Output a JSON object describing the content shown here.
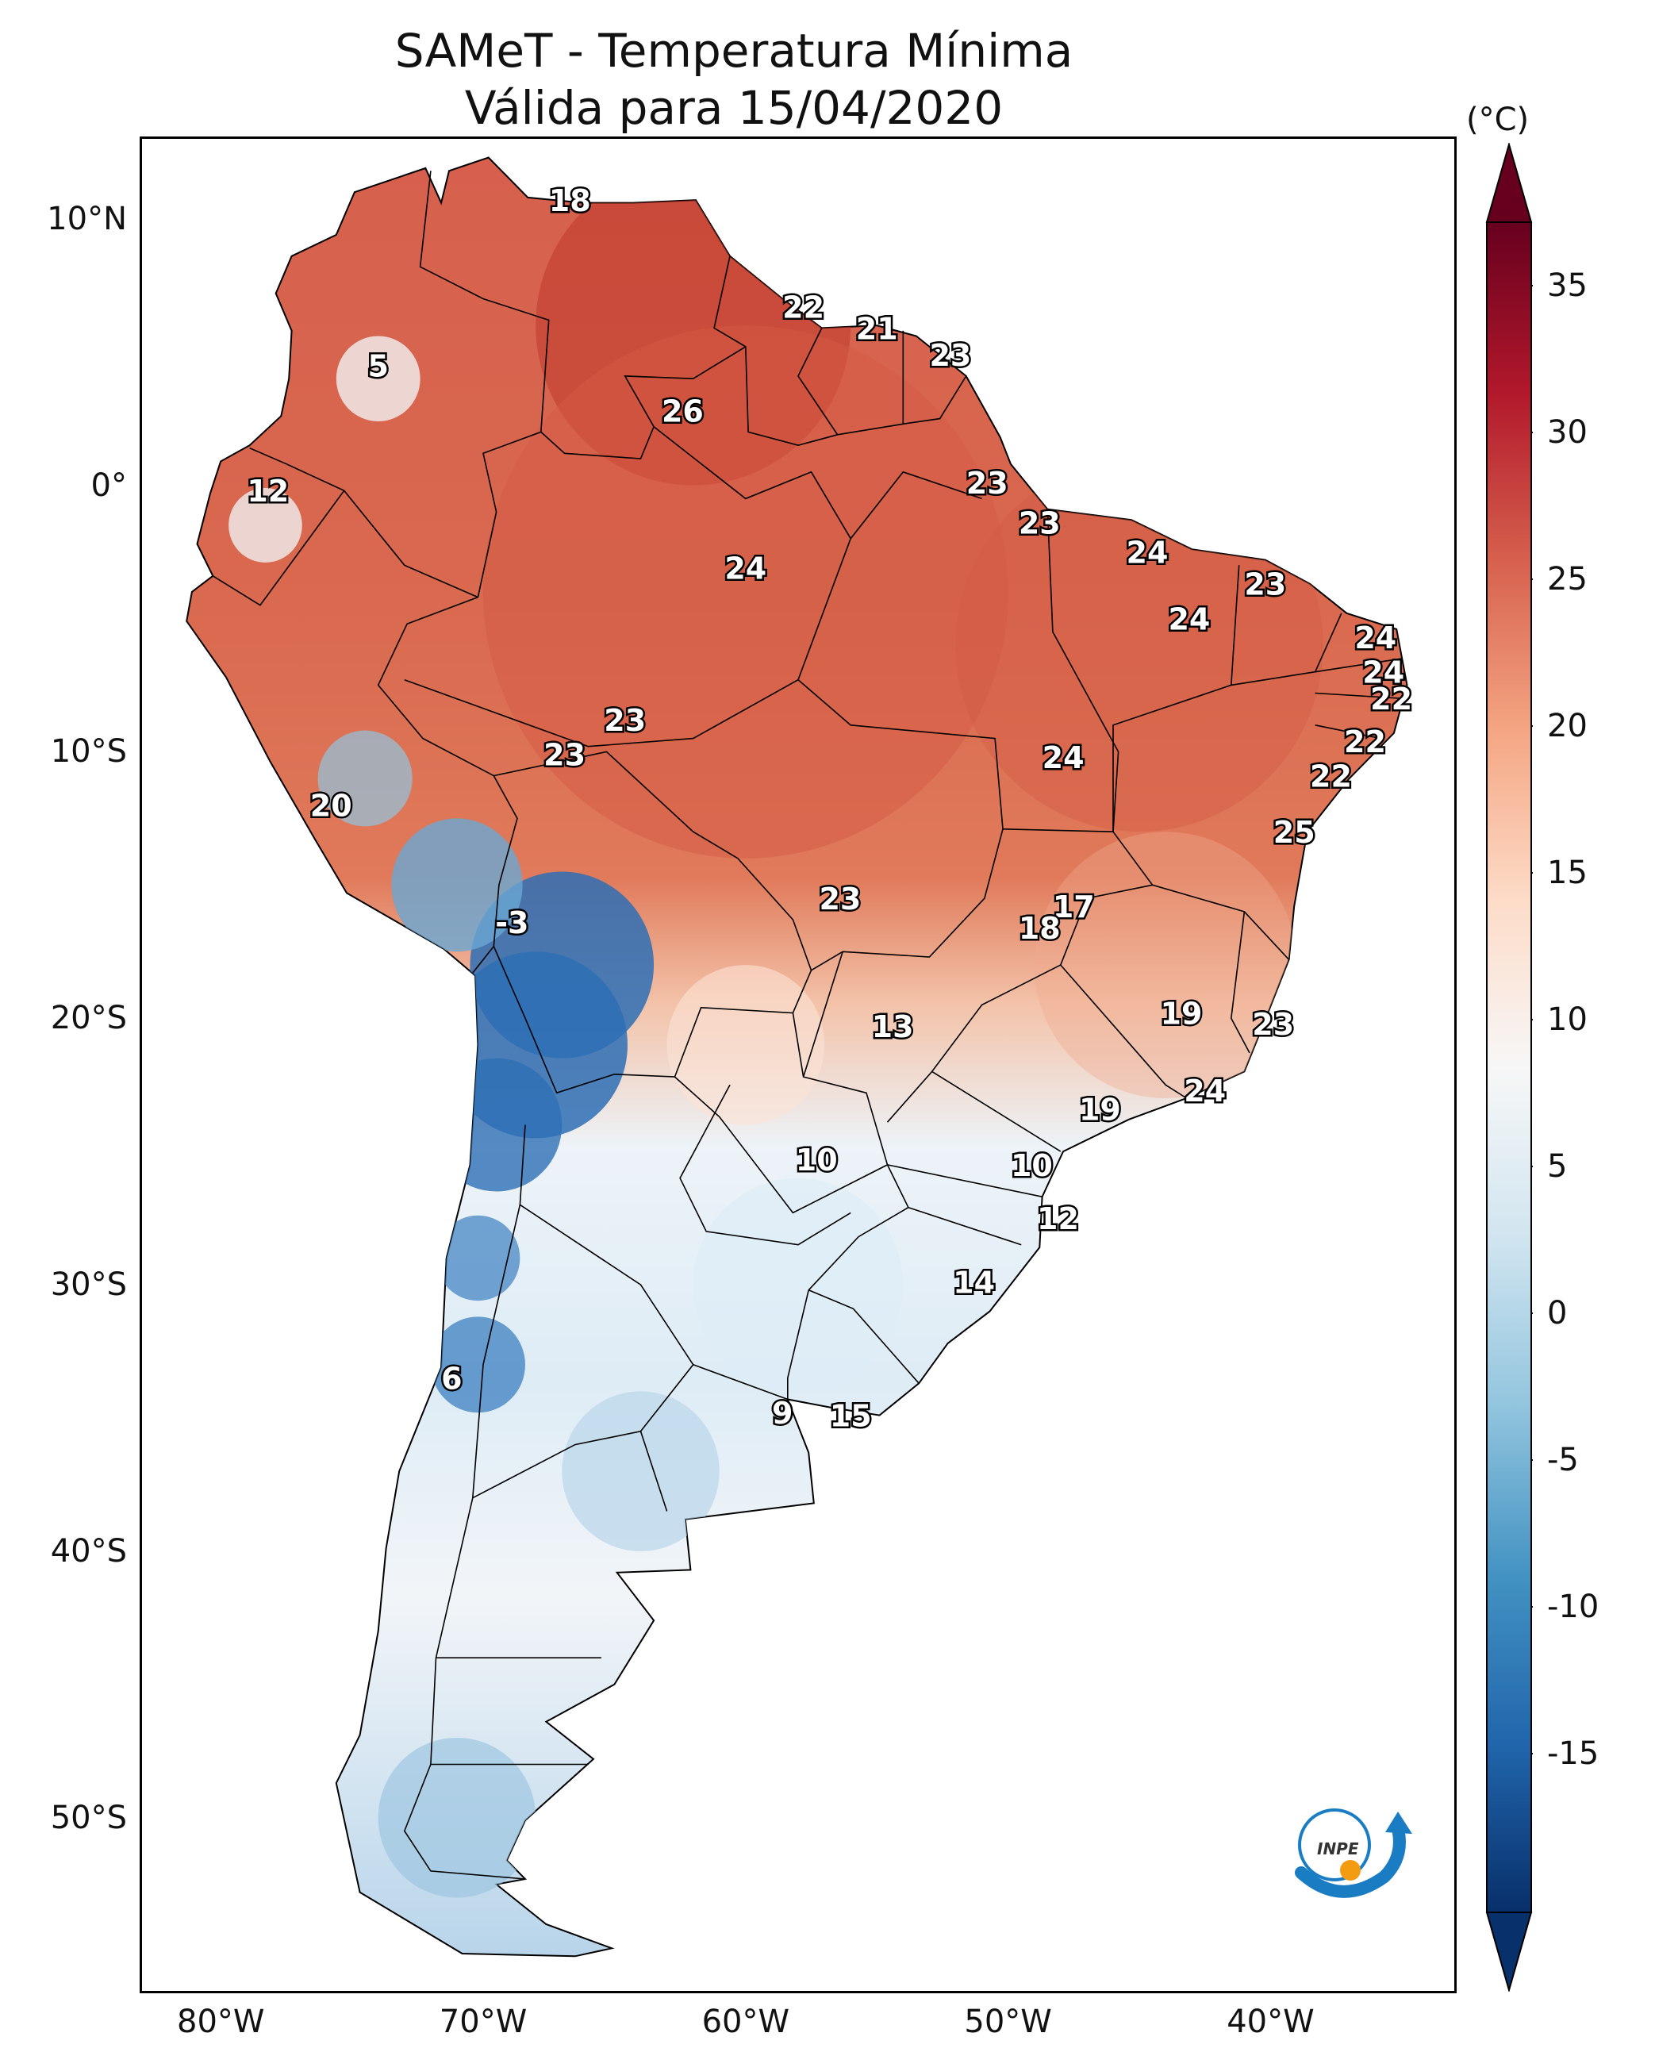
{
  "title": {
    "line1": "SAMeT - Temperatura Mínima",
    "line2": "Válida para 15/04/2020"
  },
  "map": {
    "lon_range": [
      -83,
      -33
    ],
    "lat_range": [
      -56.5,
      13
    ],
    "lat_labels": [
      "10°N",
      "0°",
      "10°S",
      "20°S",
      "30°S",
      "40°S",
      "50°S"
    ],
    "lat_values": [
      10,
      0,
      -10,
      -20,
      -30,
      -40,
      -50
    ],
    "lon_labels": [
      "80°W",
      "70°W",
      "60°W",
      "50°W",
      "40°W"
    ],
    "lon_values": [
      -80,
      -70,
      -60,
      -50,
      -40
    ],
    "point_values": [
      {
        "label": "18",
        "lon": -66.7,
        "lat": 10.6,
        "t": 18
      },
      {
        "label": "22",
        "lon": -57.8,
        "lat": 6.6,
        "t": 22
      },
      {
        "label": "21",
        "lon": -55.0,
        "lat": 5.8,
        "t": 21
      },
      {
        "label": "23",
        "lon": -52.2,
        "lat": 4.8,
        "t": 23
      },
      {
        "label": "5",
        "lon": -74.0,
        "lat": 4.4,
        "t": 5
      },
      {
        "label": "26",
        "lon": -62.4,
        "lat": 2.7,
        "t": 26
      },
      {
        "label": "12",
        "lon": -78.2,
        "lat": -0.3,
        "t": 12
      },
      {
        "label": "23",
        "lon": -50.8,
        "lat": 0.0,
        "t": 23
      },
      {
        "label": "23",
        "lon": -48.8,
        "lat": -1.5,
        "t": 23
      },
      {
        "label": "24",
        "lon": -60.0,
        "lat": -3.2,
        "t": 24
      },
      {
        "label": "24",
        "lon": -44.7,
        "lat": -2.6,
        "t": 24
      },
      {
        "label": "23",
        "lon": -40.2,
        "lat": -3.8,
        "t": 23
      },
      {
        "label": "24",
        "lon": -43.1,
        "lat": -5.1,
        "t": 24
      },
      {
        "label": "24",
        "lon": -36.0,
        "lat": -5.8,
        "t": 24
      },
      {
        "label": "24",
        "lon": -35.7,
        "lat": -7.1,
        "t": 24
      },
      {
        "label": "22",
        "lon": -35.4,
        "lat": -8.1,
        "t": 22
      },
      {
        "label": "23",
        "lon": -64.6,
        "lat": -8.9,
        "t": 23
      },
      {
        "label": "23",
        "lon": -66.9,
        "lat": -10.2,
        "t": 23
      },
      {
        "label": "24",
        "lon": -47.9,
        "lat": -10.3,
        "t": 24
      },
      {
        "label": "22",
        "lon": -36.4,
        "lat": -9.7,
        "t": 22
      },
      {
        "label": "22",
        "lon": -37.7,
        "lat": -11.0,
        "t": 22
      },
      {
        "label": "20",
        "lon": -75.8,
        "lat": -12.1,
        "t": 20
      },
      {
        "label": "25",
        "lon": -39.1,
        "lat": -13.1,
        "t": 25
      },
      {
        "label": "23",
        "lon": -56.4,
        "lat": -15.6,
        "t": 23
      },
      {
        "label": "17",
        "lon": -47.5,
        "lat": -15.9,
        "t": 17
      },
      {
        "label": "18",
        "lon": -48.8,
        "lat": -16.7,
        "t": 18
      },
      {
        "label": "-3",
        "lon": -68.9,
        "lat": -16.5,
        "t": -3
      },
      {
        "label": "19",
        "lon": -43.4,
        "lat": -19.9,
        "t": 19
      },
      {
        "label": "23",
        "lon": -39.9,
        "lat": -20.3,
        "t": 23
      },
      {
        "label": "13",
        "lon": -54.4,
        "lat": -20.4,
        "t": 13
      },
      {
        "label": "24",
        "lon": -42.5,
        "lat": -22.8,
        "t": 24
      },
      {
        "label": "19",
        "lon": -46.5,
        "lat": -23.5,
        "t": 19
      },
      {
        "label": "10",
        "lon": -57.3,
        "lat": -25.4,
        "t": 10
      },
      {
        "label": "10",
        "lon": -49.1,
        "lat": -25.6,
        "t": 10
      },
      {
        "label": "12",
        "lon": -48.1,
        "lat": -27.6,
        "t": 12
      },
      {
        "label": "14",
        "lon": -51.3,
        "lat": -30.0,
        "t": 14
      },
      {
        "label": "6",
        "lon": -71.2,
        "lat": -33.6,
        "t": 6
      },
      {
        "label": "9",
        "lon": -58.6,
        "lat": -34.9,
        "t": 9
      },
      {
        "label": "15",
        "lon": -56.0,
        "lat": -35.0,
        "t": 15
      }
    ]
  },
  "colorbar": {
    "unit": "(°C)",
    "ticks": [
      "35",
      "30",
      "25",
      "20",
      "15",
      "10",
      "5",
      "0",
      "-5",
      "-10",
      "-15"
    ],
    "tick_values": [
      35,
      30,
      25,
      20,
      15,
      10,
      5,
      0,
      -5,
      -10,
      -15
    ],
    "range": [
      -15,
      35
    ],
    "colors_low_to_high": [
      "#08306b",
      "#2166ac",
      "#4393c3",
      "#92c5de",
      "#d1e5f0",
      "#f7f7f7",
      "#fddbc7",
      "#f4a582",
      "#d6604d",
      "#b2182b",
      "#67001f"
    ]
  },
  "logo": {
    "text": "INPE"
  }
}
